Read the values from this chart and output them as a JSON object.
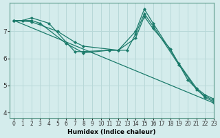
{
  "xlabel": "Humidex (Indice chaleur)",
  "ylabel": "",
  "background_color": "#d4ecec",
  "grid_color": "#b8d8d8",
  "line_color": "#1a7a6a",
  "xlim": [
    -0.5,
    23
  ],
  "ylim": [
    3.8,
    8.05
  ],
  "yticks": [
    4,
    5,
    6,
    7
  ],
  "xticks": [
    0,
    1,
    2,
    3,
    4,
    5,
    6,
    7,
    8,
    9,
    10,
    11,
    12,
    13,
    14,
    15,
    16,
    17,
    18,
    19,
    20,
    21,
    22,
    23
  ],
  "series": [
    {
      "x": [
        0,
        1,
        2,
        4,
        7,
        8,
        11,
        12,
        14,
        15,
        16,
        19,
        21,
        22,
        23
      ],
      "y": [
        7.4,
        7.4,
        7.5,
        7.3,
        6.25,
        6.25,
        6.3,
        6.3,
        7.0,
        7.82,
        7.3,
        5.8,
        4.9,
        4.65,
        4.5
      ]
    },
    {
      "x": [
        0,
        1,
        2,
        3,
        6,
        8,
        11,
        13,
        14,
        15,
        16,
        19,
        21,
        22,
        23
      ],
      "y": [
        7.4,
        7.4,
        7.4,
        7.3,
        6.55,
        6.2,
        6.3,
        6.3,
        6.9,
        7.65,
        7.2,
        5.75,
        4.85,
        4.6,
        4.45
      ]
    },
    {
      "x": [
        0,
        2,
        5,
        7,
        8,
        12,
        14,
        15,
        16,
        18,
        20,
        22,
        23
      ],
      "y": [
        7.4,
        7.35,
        7.0,
        6.6,
        6.45,
        6.3,
        6.75,
        7.55,
        7.1,
        6.35,
        5.2,
        4.55,
        4.4
      ]
    },
    {
      "x": [
        0,
        23
      ],
      "y": [
        7.4,
        4.35
      ]
    }
  ]
}
